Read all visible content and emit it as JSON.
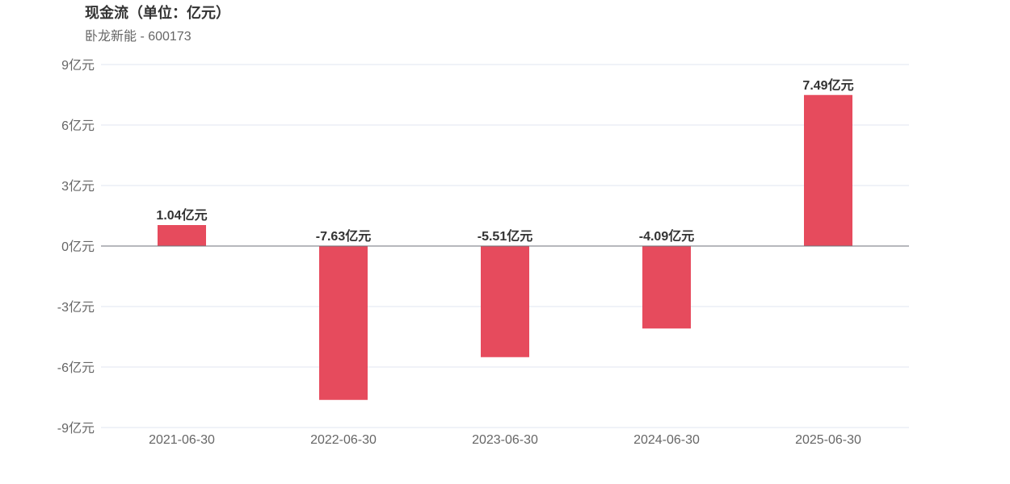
{
  "header": {
    "title": "现金流（单位：亿元）",
    "subtitle": "卧龙新能 - 600173"
  },
  "chart_data": {
    "type": "bar",
    "title": "现金流（单位：亿元）",
    "subtitle": "卧龙新能 - 600173",
    "categories": [
      "2021-06-30",
      "2022-06-30",
      "2023-06-30",
      "2024-06-30",
      "2025-06-30"
    ],
    "values": [
      1.04,
      -7.63,
      -5.51,
      -4.09,
      7.49
    ],
    "data_labels": [
      "1.04亿元",
      "-7.63亿元",
      "-5.51亿元",
      "-4.09亿元",
      "7.49亿元"
    ],
    "unit": "亿元",
    "ylim": [
      -9,
      9
    ],
    "yticks": [
      9,
      6,
      3,
      0,
      -3,
      -6,
      -9
    ],
    "ytick_labels": [
      "9亿元",
      "6亿元",
      "3亿元",
      "0亿元",
      "-3亿元",
      "-6亿元",
      "-9亿元"
    ],
    "xlabel": "",
    "ylabel": "",
    "grid": true,
    "legend": "none",
    "bar_color": "#e64b5d",
    "gridline_color": "#e0e6f1",
    "baseline_color": "#6e7079"
  }
}
